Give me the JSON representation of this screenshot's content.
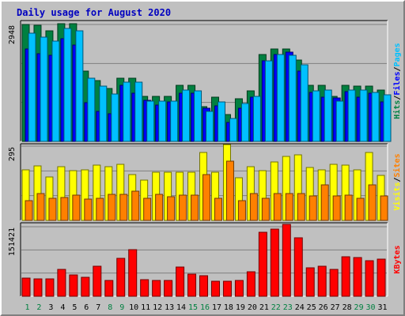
{
  "chart_data": {
    "title": "Daily usage for August 2020",
    "type": "bar",
    "categories": [
      "1",
      "2",
      "3",
      "4",
      "5",
      "6",
      "7",
      "8",
      "9",
      "10",
      "11",
      "12",
      "13",
      "14",
      "15",
      "16",
      "17",
      "18",
      "19",
      "20",
      "21",
      "22",
      "23",
      "24",
      "25",
      "26",
      "27",
      "28",
      "29",
      "30",
      "31"
    ],
    "weekend_days": [
      "1",
      "2",
      "8",
      "9",
      "15",
      "16",
      "22",
      "23",
      "29",
      "30"
    ],
    "panels": [
      {
        "key": "top",
        "ymax": 2948,
        "ymax_label": "2948",
        "right_label": [
          {
            "text": "Hits",
            "color": "#008040"
          },
          {
            "text": "/",
            "color": "#000000"
          },
          {
            "text": "Files",
            "color": "#0000ff"
          },
          {
            "text": "/",
            "color": "#000000"
          },
          {
            "text": "Pages",
            "color": "#00c0ff"
          }
        ],
        "series": [
          {
            "name": "Hits",
            "color": "#008040",
            "values": [
              2948,
              2930,
              2780,
              2960,
              2960,
              1770,
              1530,
              1330,
              1600,
              1600,
              1130,
              1130,
              1130,
              1410,
              1410,
              880,
              1120,
              680,
              1080,
              1280,
              2190,
              2330,
              2330,
              2050,
              1410,
              1410,
              1130,
              1420,
              1400,
              1390,
              1290
            ]
          },
          {
            "name": "Files",
            "color": "#0000ff",
            "values": [
              2340,
              2210,
              2180,
              2580,
              2440,
              980,
              760,
              700,
              1420,
              1220,
              1040,
              920,
              1000,
              1210,
              1210,
              840,
              900,
              480,
              840,
              1120,
              2030,
              2200,
              2260,
              1780,
              1240,
              1120,
              1090,
              1260,
              1120,
              1210,
              1000
            ]
          },
          {
            "name": "Pages",
            "color": "#00c0ff",
            "values": [
              2720,
              2630,
              2530,
              2850,
              2790,
              1600,
              1400,
              1200,
              1500,
              1500,
              1010,
              1010,
              1010,
              1290,
              1280,
              750,
              990,
              570,
              960,
              1140,
              2040,
              2200,
              2180,
              1930,
              1280,
              1290,
              1010,
              1290,
              1290,
              1240,
              1180
            ]
          }
        ]
      },
      {
        "key": "middle",
        "ymax": 295,
        "ymax_label": "295",
        "right_label": [
          {
            "text": "Visits",
            "color": "#ffff00"
          },
          {
            "text": "/",
            "color": "#000000"
          },
          {
            "text": "Sites",
            "color": "#ff8000"
          }
        ],
        "series": [
          {
            "name": "Visits",
            "color": "#ffff00",
            "values": [
              200,
              215,
              172,
              213,
              198,
              200,
              220,
              212,
              224,
              182,
              160,
              193,
              193,
              193,
              192,
              271,
              193,
              300,
              170,
              214,
              198,
              233,
              253,
              262,
              210,
              200,
              223,
              220,
              200,
              270,
              180
            ]
          },
          {
            "name": "Sites",
            "color": "#ff8000",
            "values": [
              80,
              107,
              88,
              92,
              100,
              84,
              87,
              102,
              102,
              115,
              88,
              103,
              95,
              101,
              101,
              183,
              89,
              235,
              80,
              108,
              88,
              108,
              108,
              107,
              98,
              142,
              96,
              99,
              88,
              140,
              98
            ]
          }
        ]
      },
      {
        "key": "bottom",
        "ymax": 151421,
        "ymax_label": "151421",
        "right_label": [
          {
            "text": "KBytes",
            "color": "#ff0000"
          }
        ],
        "series": [
          {
            "name": "KBytes",
            "color": "#ff0000",
            "values": [
              40000,
              38000,
              37500,
              59000,
              47000,
              42000,
              66000,
              34000,
              83000,
              101000,
              36000,
              34500,
              34500,
              64000,
              48000,
              45000,
              33000,
              32000,
              34000,
              53000,
              140000,
              147000,
              156000,
              127000,
              62000,
              66000,
              58000,
              86000,
              85000,
              77000,
              81000
            ]
          }
        ]
      }
    ]
  }
}
